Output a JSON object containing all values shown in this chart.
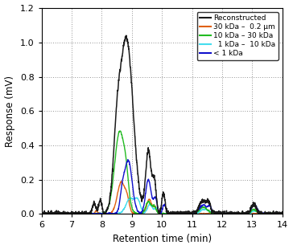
{
  "title": "",
  "xlabel": "Retention time (min)",
  "ylabel": "Response (mV)",
  "xlim": [
    6,
    14
  ],
  "ylim": [
    0,
    1.2
  ],
  "xticks": [
    6,
    7,
    8,
    9,
    10,
    11,
    12,
    13,
    14
  ],
  "yticks": [
    0.0,
    0.2,
    0.4,
    0.6,
    0.8,
    1.0,
    1.2
  ],
  "legend": [
    {
      "label": "Reconstructed",
      "color": "#1a1a1a",
      "lw": 1.1
    },
    {
      "label": "30 kDa –  0.2 μm",
      "color": "#e06010",
      "lw": 1.0
    },
    {
      "label": "10 kDa – 30 kDa",
      "color": "#22bb22",
      "lw": 1.0
    },
    {
      "label": "  1 kDa –  10 kDa",
      "color": "#44ddee",
      "lw": 1.0
    },
    {
      "label": "< 1 kDa",
      "color": "#1010cc",
      "lw": 1.0
    }
  ],
  "background_color": "#ffffff",
  "grid_color": "#777777"
}
